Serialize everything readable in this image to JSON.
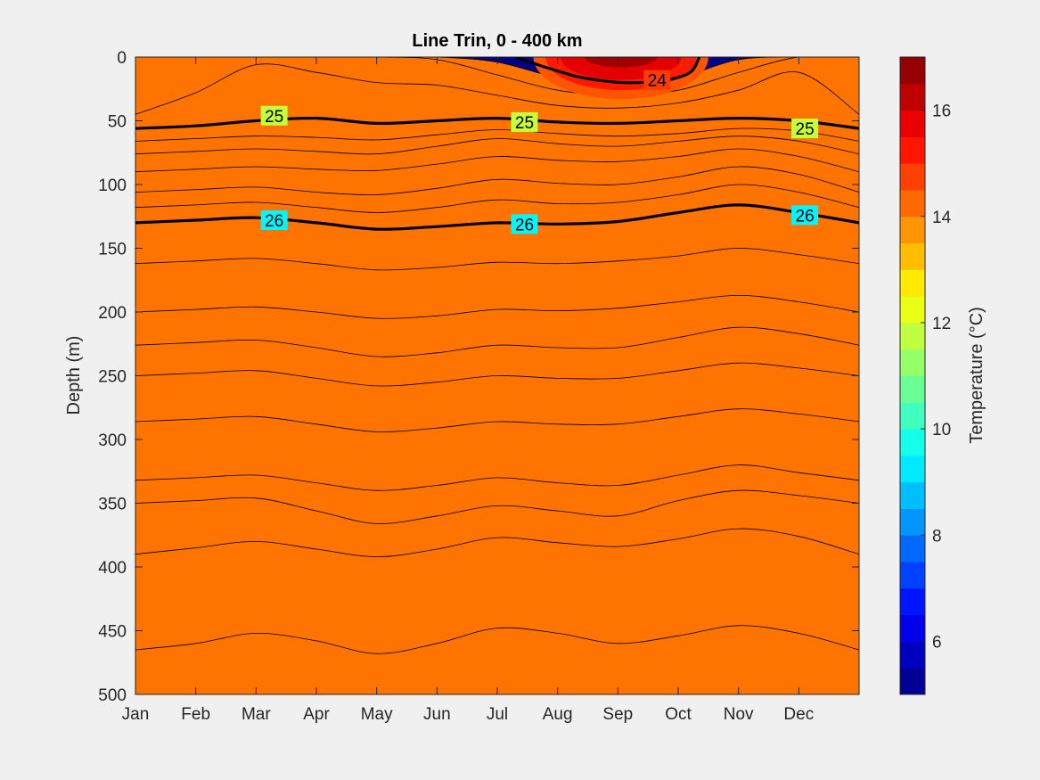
{
  "chart_data": {
    "type": "heatmap",
    "subtype": "filled-contour",
    "title": "Line Trin, 0 - 400 km",
    "xlabel": "",
    "ylabel": "Depth (m)",
    "x_categories": [
      "Jan",
      "Feb",
      "Mar",
      "Apr",
      "May",
      "Jun",
      "Jul",
      "Aug",
      "Sep",
      "Oct",
      "Nov",
      "Dec"
    ],
    "x_range": [
      0,
      12
    ],
    "ylim": [
      0,
      500
    ],
    "y_reversed": true,
    "y_ticks": [
      0,
      50,
      100,
      150,
      200,
      250,
      300,
      350,
      400,
      450,
      500
    ],
    "colorbar": {
      "label": "Temperature (°C)",
      "range": [
        5,
        17
      ],
      "ticks": [
        6,
        8,
        10,
        12,
        14,
        16
      ],
      "levels": 24,
      "colormap": "jet"
    },
    "isotherm_depths_m": [
      {
        "temp": 14,
        "depth": [
          0,
          0,
          0,
          0,
          0,
          0,
          4,
          16,
          20,
          16,
          2,
          0,
          0
        ]
      },
      {
        "temp": 13,
        "depth": [
          0,
          0,
          0,
          0,
          0,
          2,
          14,
          26,
          30,
          26,
          12,
          0,
          0
        ]
      },
      {
        "temp": 12.5,
        "depth": [
          45,
          28,
          6,
          12,
          20,
          22,
          30,
          38,
          40,
          36,
          26,
          12,
          45
        ]
      },
      {
        "temp": 12,
        "depth": [
          56,
          54,
          50,
          48,
          52,
          50,
          48,
          51,
          52,
          50,
          48,
          50,
          56
        ]
      },
      {
        "temp": 11.5,
        "depth": [
          66,
          64,
          62,
          63,
          65,
          61,
          57,
          60,
          62,
          60,
          56,
          58,
          66
        ]
      },
      {
        "temp": 11,
        "depth": [
          76,
          74,
          72,
          74,
          76,
          70,
          64,
          68,
          70,
          66,
          62,
          66,
          76
        ]
      },
      {
        "temp": 10.5,
        "depth": [
          90,
          88,
          86,
          88,
          89,
          84,
          78,
          81,
          82,
          78,
          72,
          78,
          90
        ]
      },
      {
        "temp": 10,
        "depth": [
          106,
          104,
          102,
          106,
          108,
          103,
          96,
          99,
          100,
          94,
          86,
          92,
          106
        ]
      },
      {
        "temp": 9.5,
        "depth": [
          118,
          116,
          114,
          118,
          122,
          118,
          112,
          115,
          114,
          108,
          100,
          106,
          118
        ]
      },
      {
        "temp": 9,
        "depth": [
          130,
          128,
          126,
          130,
          135,
          133,
          130,
          131,
          129,
          122,
          116,
          122,
          130
        ]
      },
      {
        "temp": 8.5,
        "depth": [
          162,
          160,
          158,
          162,
          167,
          165,
          161,
          162,
          160,
          156,
          150,
          155,
          162
        ]
      },
      {
        "temp": 8,
        "depth": [
          200,
          198,
          196,
          200,
          205,
          203,
          198,
          199,
          197,
          192,
          187,
          192,
          200
        ]
      },
      {
        "temp": 7.5,
        "depth": [
          226,
          224,
          222,
          228,
          235,
          232,
          226,
          228,
          228,
          220,
          212,
          217,
          226
        ]
      },
      {
        "temp": 7,
        "depth": [
          250,
          248,
          246,
          252,
          258,
          255,
          250,
          252,
          252,
          246,
          240,
          244,
          250
        ]
      },
      {
        "temp": 6.5,
        "depth": [
          286,
          284,
          282,
          288,
          294,
          291,
          286,
          288,
          288,
          282,
          276,
          280,
          286
        ]
      },
      {
        "temp": 6,
        "depth": [
          332,
          330,
          328,
          334,
          340,
          336,
          330,
          334,
          336,
          328,
          320,
          326,
          332
        ]
      },
      {
        "temp": 5.75,
        "depth": [
          350,
          348,
          346,
          356,
          366,
          360,
          352,
          356,
          360,
          348,
          340,
          344,
          350
        ]
      },
      {
        "temp": 5.5,
        "depth": [
          390,
          385,
          380,
          386,
          392,
          386,
          377,
          381,
          384,
          378,
          370,
          376,
          390
        ]
      },
      {
        "temp": 5.25,
        "depth": [
          465,
          460,
          452,
          458,
          468,
          460,
          448,
          452,
          460,
          454,
          446,
          452,
          465
        ]
      }
    ],
    "contour_labels": [
      {
        "text": "24",
        "x": 8.65,
        "depth": 18
      },
      {
        "text": "25",
        "x": 2.3,
        "depth": 46
      },
      {
        "text": "25",
        "x": 6.45,
        "depth": 51
      },
      {
        "text": "25",
        "x": 11.1,
        "depth": 56
      },
      {
        "text": "26",
        "x": 2.3,
        "depth": 128
      },
      {
        "text": "26",
        "x": 6.45,
        "depth": 131
      },
      {
        "text": "26",
        "x": 11.1,
        "depth": 124
      }
    ]
  }
}
